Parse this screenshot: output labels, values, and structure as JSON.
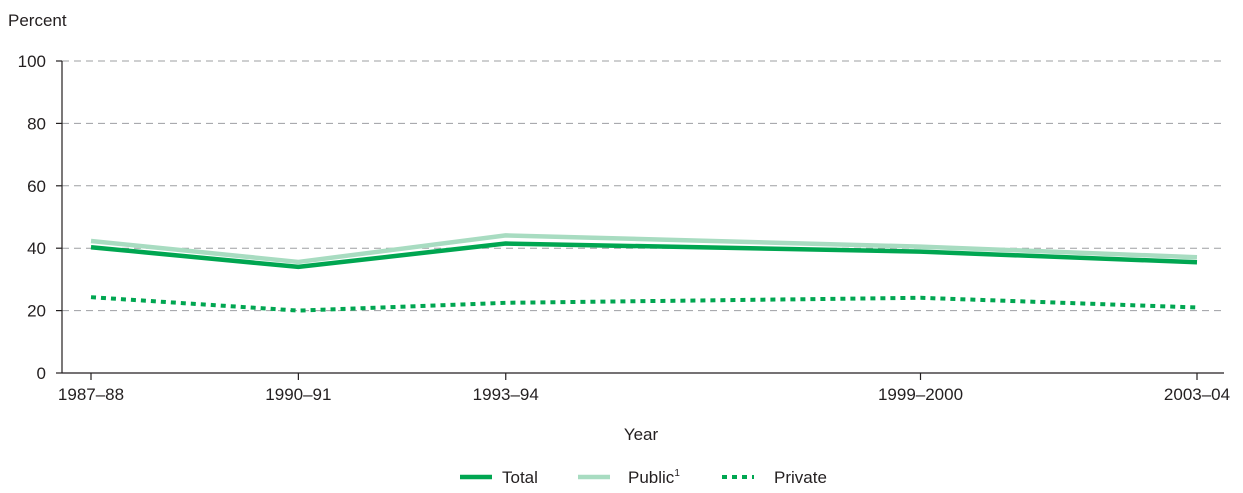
{
  "chart_data": {
    "type": "line",
    "ylabel": "Percent",
    "xlabel": "Year",
    "ylim": [
      0,
      100
    ],
    "y_ticks": [
      "0",
      "20",
      "40",
      "60",
      "80",
      "100"
    ],
    "x": [
      1987,
      1990,
      1993,
      1999,
      2003
    ],
    "x_labels": [
      "1987–88",
      "1990–91",
      "1993–94",
      "1999–2000",
      "2003–04"
    ],
    "grid": "horizontal dashed",
    "legend_position": "bottom-center",
    "series": [
      {
        "name": "Total",
        "style": "solid",
        "color": "#00a651",
        "values": [
          40.3,
          34.0,
          41.5,
          38.9,
          35.5
        ]
      },
      {
        "name": "Public",
        "superscript": "1",
        "style": "solid",
        "color": "#a8dcc1",
        "values": [
          42.3,
          35.6,
          44.1,
          40.5,
          37.1
        ]
      },
      {
        "name": "Private",
        "style": "dotted",
        "color": "#00a651",
        "values": [
          24.3,
          20.0,
          22.5,
          24.1,
          21.0
        ]
      }
    ]
  }
}
